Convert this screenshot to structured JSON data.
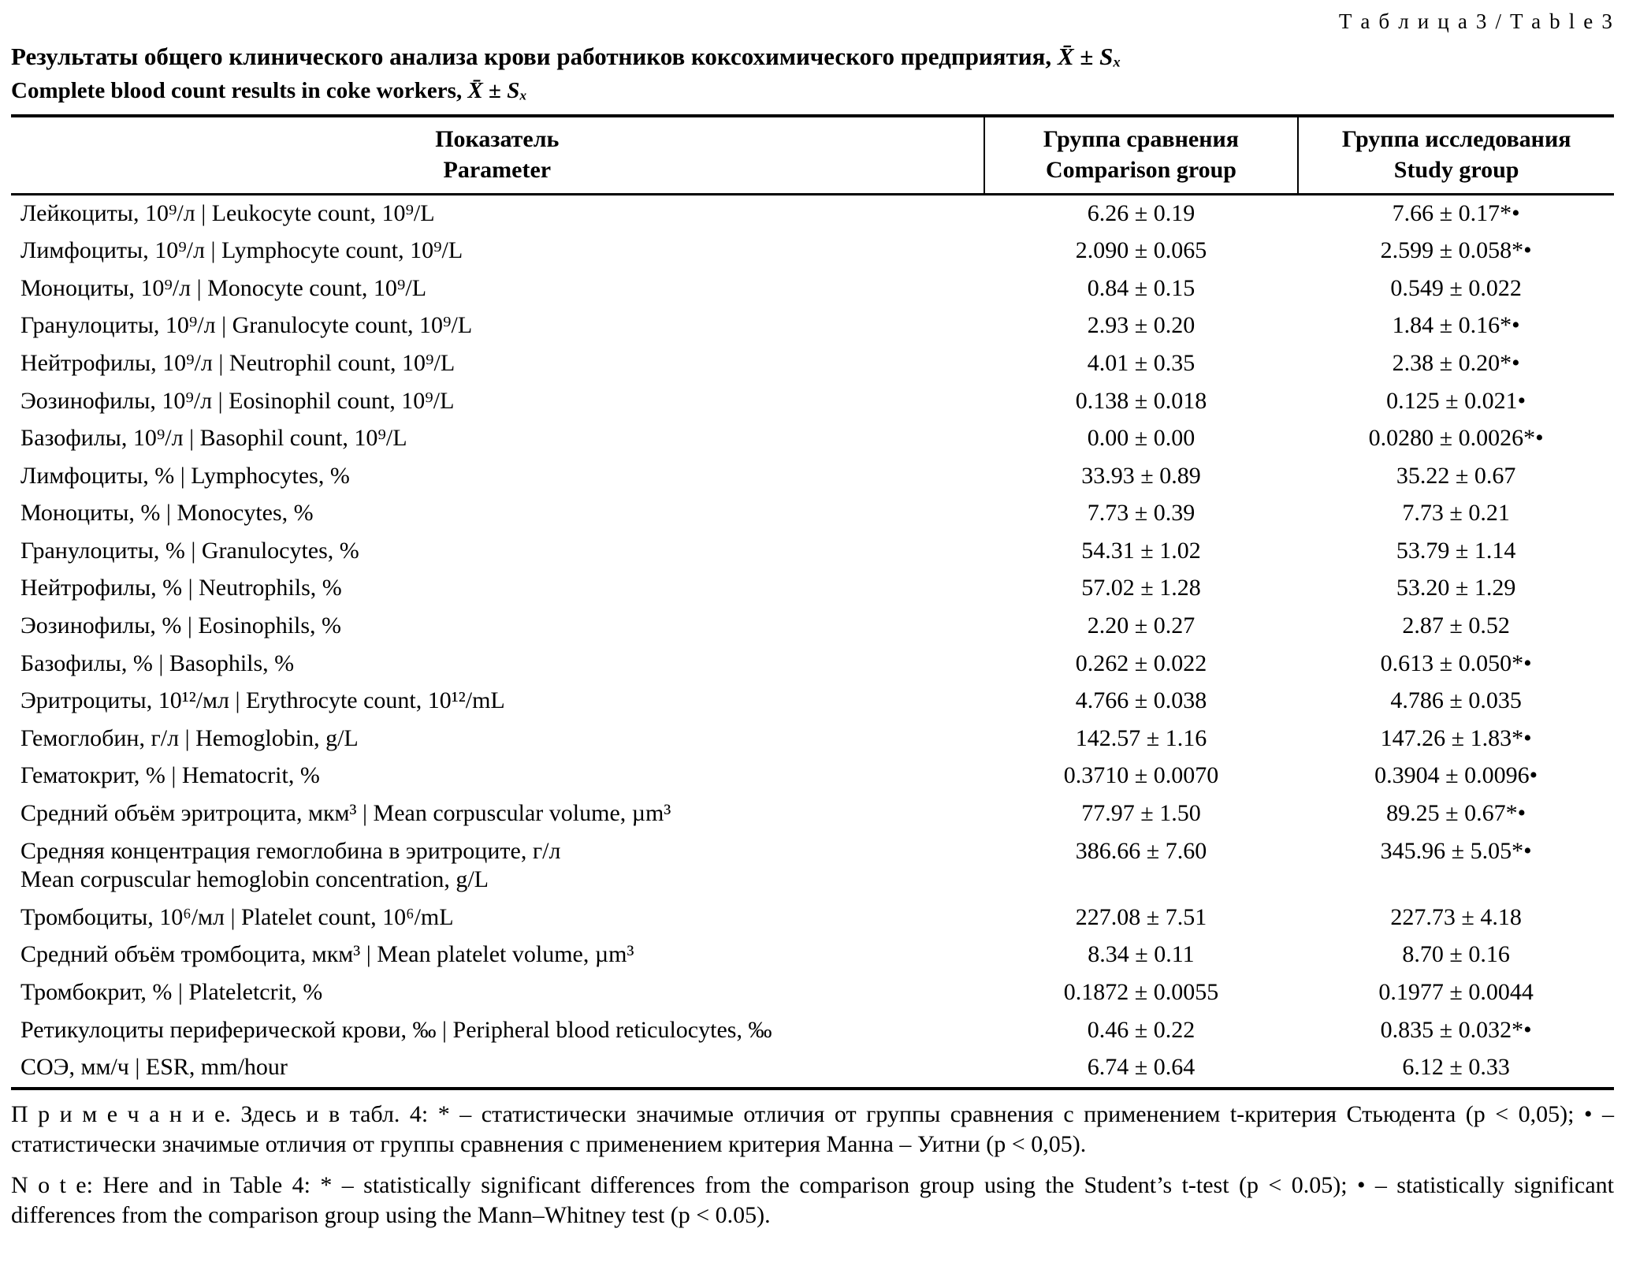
{
  "page": {
    "table_label": "Т а б л и ц а  3  /  T a b l e  3",
    "title_ru": "Результаты общего клинического анализа крови работников коксохимического предприятия,",
    "title_formula": "X̄ ± Sₓ",
    "title_en": "Complete blood count results in coke workers,",
    "subtitle_formula": "X̄ ± Sₓ"
  },
  "table": {
    "headers": {
      "parameter_ru": "Показатель",
      "parameter_en": "Parameter",
      "comparison_ru": "Группа сравнения",
      "comparison_en": "Comparison group",
      "study_ru": "Группа исследования",
      "study_en": "Study group"
    },
    "rows": [
      {
        "param": "Лейкоциты, 10⁹/л | Leukocyte count, 10⁹/L",
        "comparison": "6.26 ± 0.19",
        "study": "7.66 ± 0.17*•"
      },
      {
        "param": "Лимфоциты, 10⁹/л | Lymphocyte count, 10⁹/L",
        "comparison": "2.090 ± 0.065",
        "study": "2.599 ± 0.058*•"
      },
      {
        "param": "Моноциты, 10⁹/л | Monocyte count, 10⁹/L",
        "comparison": "0.84 ± 0.15",
        "study": "0.549 ± 0.022"
      },
      {
        "param": "Гранулоциты, 10⁹/л | Granulocyte count, 10⁹/L",
        "comparison": "2.93 ± 0.20",
        "study": "1.84 ± 0.16*•"
      },
      {
        "param": "Нейтрофилы, 10⁹/л | Neutrophil count, 10⁹/L",
        "comparison": "4.01 ± 0.35",
        "study": "2.38 ± 0.20*•"
      },
      {
        "param": "Эозинофилы, 10⁹/л | Eosinophil count, 10⁹/L",
        "comparison": "0.138 ± 0.018",
        "study": "0.125 ± 0.021•"
      },
      {
        "param": "Базофилы, 10⁹/л | Basophil count, 10⁹/L",
        "comparison": "0.00 ± 0.00",
        "study": "0.0280 ± 0.0026*•"
      },
      {
        "param": "Лимфоциты, % | Lymphocytes, %",
        "comparison": "33.93 ± 0.89",
        "study": "35.22 ± 0.67"
      },
      {
        "param": "Моноциты, % | Monocytes, %",
        "comparison": "7.73 ± 0.39",
        "study": "7.73 ± 0.21"
      },
      {
        "param": "Гранулоциты, % | Granulocytes, %",
        "comparison": "54.31 ± 1.02",
        "study": "53.79 ± 1.14"
      },
      {
        "param": "Нейтрофилы, % | Neutrophils, %",
        "comparison": "57.02 ± 1.28",
        "study": "53.20 ± 1.29"
      },
      {
        "param": "Эозинофилы, % | Eosinophils, %",
        "comparison": "2.20 ± 0.27",
        "study": "2.87 ± 0.52"
      },
      {
        "param": "Базофилы, % | Basophils, %",
        "comparison": "0.262 ± 0.022",
        "study": "0.613 ± 0.050*•"
      },
      {
        "param": "Эритроциты, 10¹²/мл | Erythrocyte count, 10¹²/mL",
        "comparison": "4.766 ± 0.038",
        "study": "4.786 ± 0.035"
      },
      {
        "param": "Гемоглобин, г/л | Hemoglobin, g/L",
        "comparison": "142.57 ± 1.16",
        "study": "147.26 ± 1.83*•"
      },
      {
        "param": "Гематокрит, % | Hematocrit, %",
        "comparison": "0.3710 ± 0.0070",
        "study": "0.3904 ± 0.0096•"
      },
      {
        "param": "Средний объём эритроцита, мкм³ | Mean corpuscular volume, µm³",
        "comparison": "77.97 ± 1.50",
        "study": "89.25 ± 0.67*•"
      },
      {
        "param": "Средняя концентрация гемоглобина в эритроците, г/л",
        "param_line2": "Mean corpuscular hemoglobin concentration, g/L",
        "comparison": "386.66 ± 7.60",
        "study": "345.96 ± 5.05*•"
      },
      {
        "param": "Тромбоциты, 10⁶/мл | Platelet count, 10⁶/mL",
        "comparison": "227.08 ± 7.51",
        "study": "227.73 ± 4.18"
      },
      {
        "param": "Средний объём тромбоцита, мкм³ | Mean platelet volume, µm³",
        "comparison": "8.34 ± 0.11",
        "study": "8.70 ± 0.16"
      },
      {
        "param": "Тромбокрит, % | Plateletcrit, %",
        "comparison": "0.1872 ± 0.0055",
        "study": "0.1977 ± 0.0044"
      },
      {
        "param": "Ретикулоциты периферической крови, ‰ | Peripheral blood reticulocytes, ‰",
        "comparison": "0.46 ± 0.22",
        "study": "0.835 ± 0.032*•"
      },
      {
        "param": "СОЭ, мм/ч | ESR, mm/hour",
        "comparison": "6.74 ± 0.64",
        "study": "6.12 ± 0.33"
      }
    ]
  },
  "notes": {
    "ru": "П р и м е ч а н и е. Здесь и в табл. 4: * – статистически значимые отличия от группы сравнения с применением t-критерия Стьюдента (p < 0,05); • – статистически значимые отличия от группы сравнения с применением критерия Манна – Уитни (p < 0,05).",
    "en": "N o t e: Here and in Table 4: * – statistically significant differences from the comparison group using the Student’s t-test (p < 0.05); • – statistically significant differences from the comparison group using the Mann–Whitney test (p < 0.05)."
  }
}
